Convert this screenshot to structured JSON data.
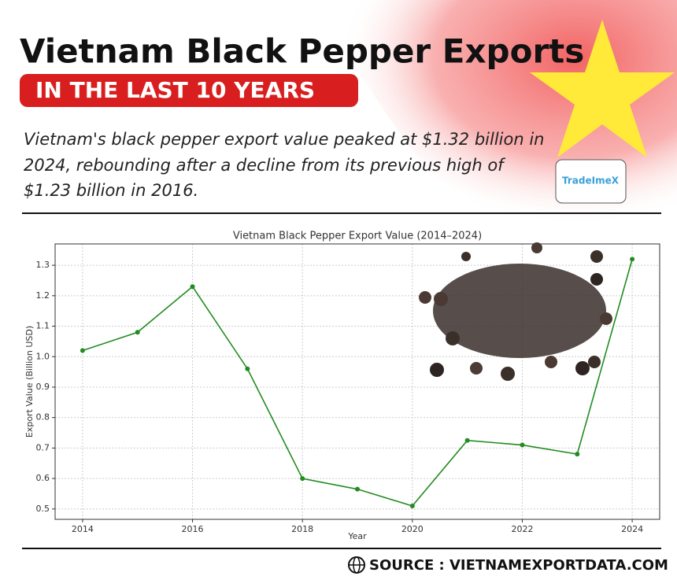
{
  "title": "Vietnam Black Pepper Exports",
  "subtitle": "IN THE LAST 10 YEARS",
  "description": [
    "Vietnam's black pepper export value peaked at $1.32 billion in",
    "2024, rebounding after a decline from its previous high of",
    "$1.23 billion in 2016."
  ],
  "logo": "TradeImeX",
  "source": "SOURCE : VIETNAMEXPORTDATA.COM",
  "chart_data": {
    "type": "line",
    "title": "Vietnam Black Pepper Export Value (2014–2024)",
    "x_label": "Year",
    "y_label": "Export Value (Billion USD)",
    "x": [
      2014,
      2015,
      2016,
      2017,
      2018,
      2019,
      2020,
      2021,
      2022,
      2023,
      2024
    ],
    "series": [
      {
        "name": "Export Value",
        "color": "#228b22",
        "values": [
          1.02,
          1.08,
          1.23,
          0.96,
          0.6,
          0.565,
          0.51,
          0.725,
          0.71,
          0.68,
          1.32
        ]
      }
    ],
    "xlim": [
      2013.5,
      2024.5
    ],
    "ylim": [
      0.466,
      1.37
    ],
    "xticks": [
      2014,
      2016,
      2018,
      2020,
      2022,
      2024
    ],
    "yticks": [
      0.5,
      0.6,
      0.7,
      0.8,
      0.9,
      {
        "value": 1,
        "label": "1.0"
      },
      1.1,
      1.2,
      1.3
    ],
    "grid": true
  }
}
